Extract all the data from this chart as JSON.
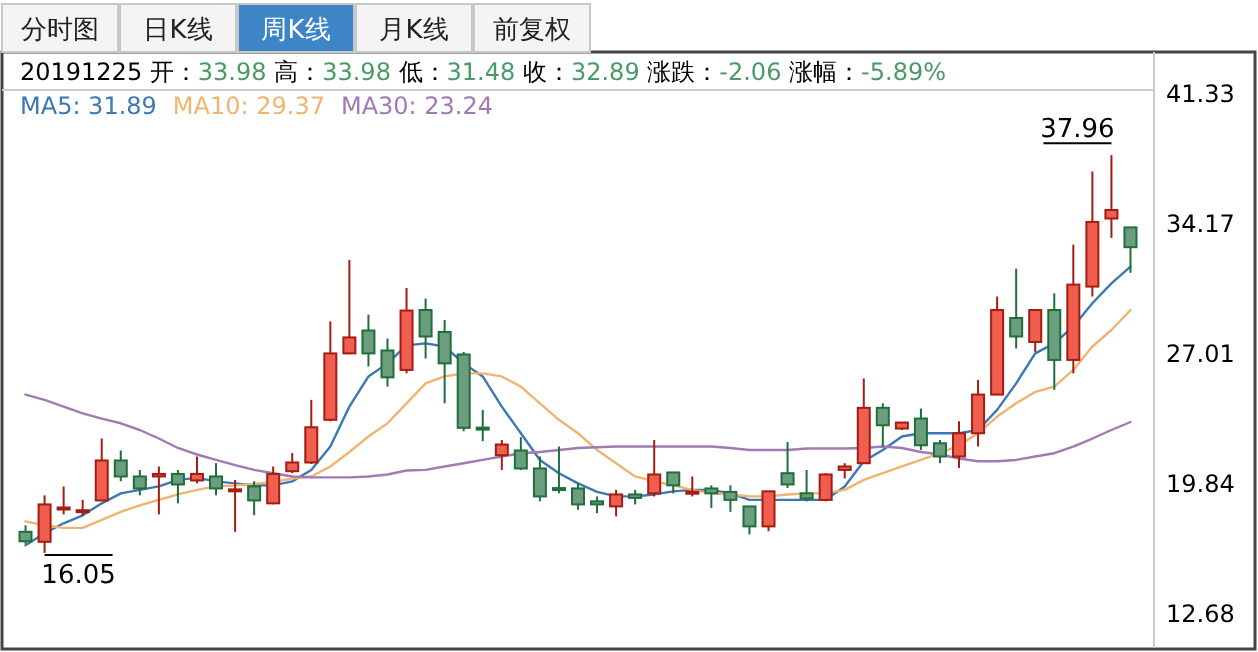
{
  "chart_data": {
    "type": "candlestick",
    "title": "20191225 开：33.98 高：33.98 低：31.48 收：32.89 涨跌：-2.06 涨幅：-5.89%",
    "subtitle": "周K线",
    "categories": [
      null,
      null,
      null,
      null,
      null,
      null,
      null,
      null,
      null,
      null,
      null,
      null,
      null,
      null,
      null,
      null,
      null,
      null,
      null,
      null,
      null,
      null,
      null,
      null,
      null,
      null,
      null,
      null,
      null,
      null,
      null,
      null,
      null,
      null,
      null,
      null,
      null,
      null,
      null,
      null,
      null,
      null,
      null,
      null,
      null,
      null,
      null,
      null,
      null,
      null,
      null,
      null,
      null,
      null,
      null,
      null,
      null,
      null,
      null
    ],
    "ohlc": [
      [
        17.21,
        17.57,
        16.55,
        16.69
      ],
      [
        16.66,
        19.22,
        16.05,
        18.72
      ],
      [
        18.45,
        19.71,
        18.17,
        18.55
      ],
      [
        18.35,
        18.97,
        18.08,
        18.4
      ],
      [
        18.94,
        22.35,
        18.9,
        21.14
      ],
      [
        21.14,
        21.69,
        20.0,
        20.26
      ],
      [
        20.26,
        20.62,
        19.22,
        19.6
      ],
      [
        20.26,
        20.81,
        18.17,
        20.4
      ],
      [
        20.4,
        20.62,
        18.78,
        19.82
      ],
      [
        20.04,
        21.36,
        19.88,
        20.4
      ],
      [
        20.26,
        20.99,
        19.22,
        19.6
      ],
      [
        19.5,
        20.07,
        17.21,
        19.55
      ],
      [
        19.71,
        20.0,
        18.13,
        18.94
      ],
      [
        18.78,
        20.81,
        18.72,
        20.4
      ],
      [
        20.55,
        21.55,
        20.44,
        21.03
      ],
      [
        21.03,
        24.48,
        20.95,
        22.97
      ],
      [
        23.38,
        28.8,
        23.3,
        27.04
      ],
      [
        27.04,
        32.19,
        27.0,
        27.92
      ],
      [
        28.3,
        29.18,
        26.32,
        27.04
      ],
      [
        27.2,
        27.86,
        25.21,
        25.72
      ],
      [
        26.13,
        30.64,
        25.94,
        29.4
      ],
      [
        29.43,
        30.06,
        26.76,
        27.97
      ],
      [
        28.22,
        28.88,
        24.29,
        26.49
      ],
      [
        26.98,
        27.12,
        22.75,
        22.94
      ],
      [
        22.95,
        23.93,
        22.2,
        22.9
      ],
      [
        21.43,
        22.27,
        20.62,
        22.02
      ],
      [
        21.69,
        22.42,
        20.62,
        20.7
      ],
      [
        20.7,
        21.36,
        18.89,
        19.16
      ],
      [
        19.62,
        21.91,
        19.33,
        19.6
      ],
      [
        19.6,
        19.88,
        18.42,
        18.72
      ],
      [
        18.89,
        19.16,
        18.23,
        18.72
      ],
      [
        18.61,
        19.52,
        18.06,
        19.27
      ],
      [
        19.27,
        19.52,
        18.72,
        19.08
      ],
      [
        19.33,
        22.27,
        19.16,
        20.37
      ],
      [
        20.48,
        20.48,
        19.33,
        19.77
      ],
      [
        19.35,
        20.26,
        19.16,
        19.42
      ],
      [
        19.6,
        19.77,
        18.53,
        19.33
      ],
      [
        19.41,
        19.77,
        18.31,
        18.97
      ],
      [
        18.61,
        18.61,
        17.07,
        17.51
      ],
      [
        17.51,
        19.44,
        17.24,
        19.44
      ],
      [
        20.44,
        22.16,
        19.63,
        19.82
      ],
      [
        19.33,
        20.62,
        18.89,
        19.05
      ],
      [
        18.97,
        20.44,
        18.89,
        20.37
      ],
      [
        20.62,
        20.99,
        20.15,
        20.81
      ],
      [
        20.99,
        25.66,
        20.99,
        24.04
      ],
      [
        24.04,
        24.29,
        21.91,
        23.08
      ],
      [
        22.9,
        23.23,
        22.82,
        23.23
      ],
      [
        23.45,
        24.0,
        21.72,
        21.98
      ],
      [
        22.09,
        22.27,
        20.99,
        21.36
      ],
      [
        21.36,
        23.3,
        20.73,
        22.64
      ],
      [
        22.64,
        25.58,
        21.91,
        24.77
      ],
      [
        24.77,
        30.17,
        24.77,
        29.43
      ],
      [
        28.99,
        31.71,
        27.31,
        27.97
      ],
      [
        27.67,
        29.43,
        27.12,
        29.43
      ],
      [
        29.43,
        30.35,
        25.03,
        26.68
      ],
      [
        26.68,
        33.03,
        25.94,
        30.83
      ],
      [
        30.72,
        37.06,
        30.17,
        34.28
      ],
      [
        34.47,
        37.96,
        33.4,
        34.94
      ],
      [
        33.98,
        33.98,
        31.48,
        32.89
      ]
    ],
    "series": [
      {
        "name": "MA5: 31.89",
        "type": "line",
        "color": "#3c78b4",
        "values": [
          16.47,
          17.13,
          17.68,
          18.12,
          18.78,
          19.33,
          19.52,
          19.71,
          20.07,
          20.18,
          19.99,
          19.88,
          19.77,
          19.77,
          19.99,
          20.62,
          21.91,
          24.11,
          25.77,
          26.49,
          27.48,
          27.59,
          27.42,
          26.49,
          25.77,
          24.11,
          22.64,
          21.17,
          20.44,
          19.88,
          19.41,
          19.16,
          19.16,
          19.27,
          19.44,
          19.52,
          19.52,
          19.33,
          18.97,
          18.97,
          18.97,
          18.97,
          18.97,
          19.71,
          21.1,
          21.72,
          22.46,
          22.64,
          22.64,
          22.64,
          22.82,
          23.93,
          25.39,
          27.04,
          27.59,
          28.52,
          29.8,
          30.9,
          31.82
        ]
      },
      {
        "name": "MA10: 29.37",
        "type": "line",
        "color": "#f0b46e",
        "values": [
          17.79,
          17.57,
          17.43,
          17.43,
          17.87,
          18.31,
          18.67,
          18.97,
          19.27,
          19.52,
          19.71,
          19.77,
          19.85,
          19.96,
          20.15,
          20.26,
          20.81,
          21.61,
          22.46,
          23.19,
          24.29,
          25.39,
          25.77,
          25.94,
          25.94,
          25.77,
          25.21,
          24.29,
          23.38,
          22.64,
          21.72,
          20.99,
          20.26,
          19.99,
          19.77,
          19.52,
          19.33,
          19.27,
          19.16,
          19.16,
          19.27,
          19.33,
          19.33,
          19.52,
          20.07,
          20.44,
          20.81,
          21.17,
          21.54,
          21.98,
          22.64,
          23.56,
          24.29,
          24.92,
          25.21,
          26.13,
          27.42,
          28.33,
          29.43
        ]
      },
      {
        "name": "MA30: 23.24",
        "type": "line",
        "color": "#a07ab4",
        "values": [
          24.77,
          24.48,
          24.11,
          23.74,
          23.45,
          23.19,
          22.82,
          22.35,
          21.83,
          21.47,
          21.17,
          20.88,
          20.62,
          20.44,
          20.26,
          20.21,
          20.21,
          20.21,
          20.26,
          20.37,
          20.59,
          20.62,
          20.81,
          20.99,
          21.17,
          21.36,
          21.54,
          21.61,
          21.72,
          21.83,
          21.87,
          21.91,
          21.91,
          21.91,
          21.91,
          21.91,
          21.91,
          21.83,
          21.72,
          21.72,
          21.72,
          21.8,
          21.8,
          21.8,
          21.83,
          21.91,
          21.83,
          21.61,
          21.47,
          21.25,
          21.1,
          21.1,
          21.17,
          21.36,
          21.54,
          21.91,
          22.35,
          22.82,
          23.26
        ]
      }
    ],
    "ylim": [
      10.81,
      41.55
    ],
    "yticks": [
      12.68,
      19.84,
      27.01,
      34.17,
      41.33
    ],
    "legend": "top left",
    "annotations": [
      "分时图",
      "日K线",
      "月K线",
      "前复权",
      "37.96",
      "16.05"
    ]
  }
}
